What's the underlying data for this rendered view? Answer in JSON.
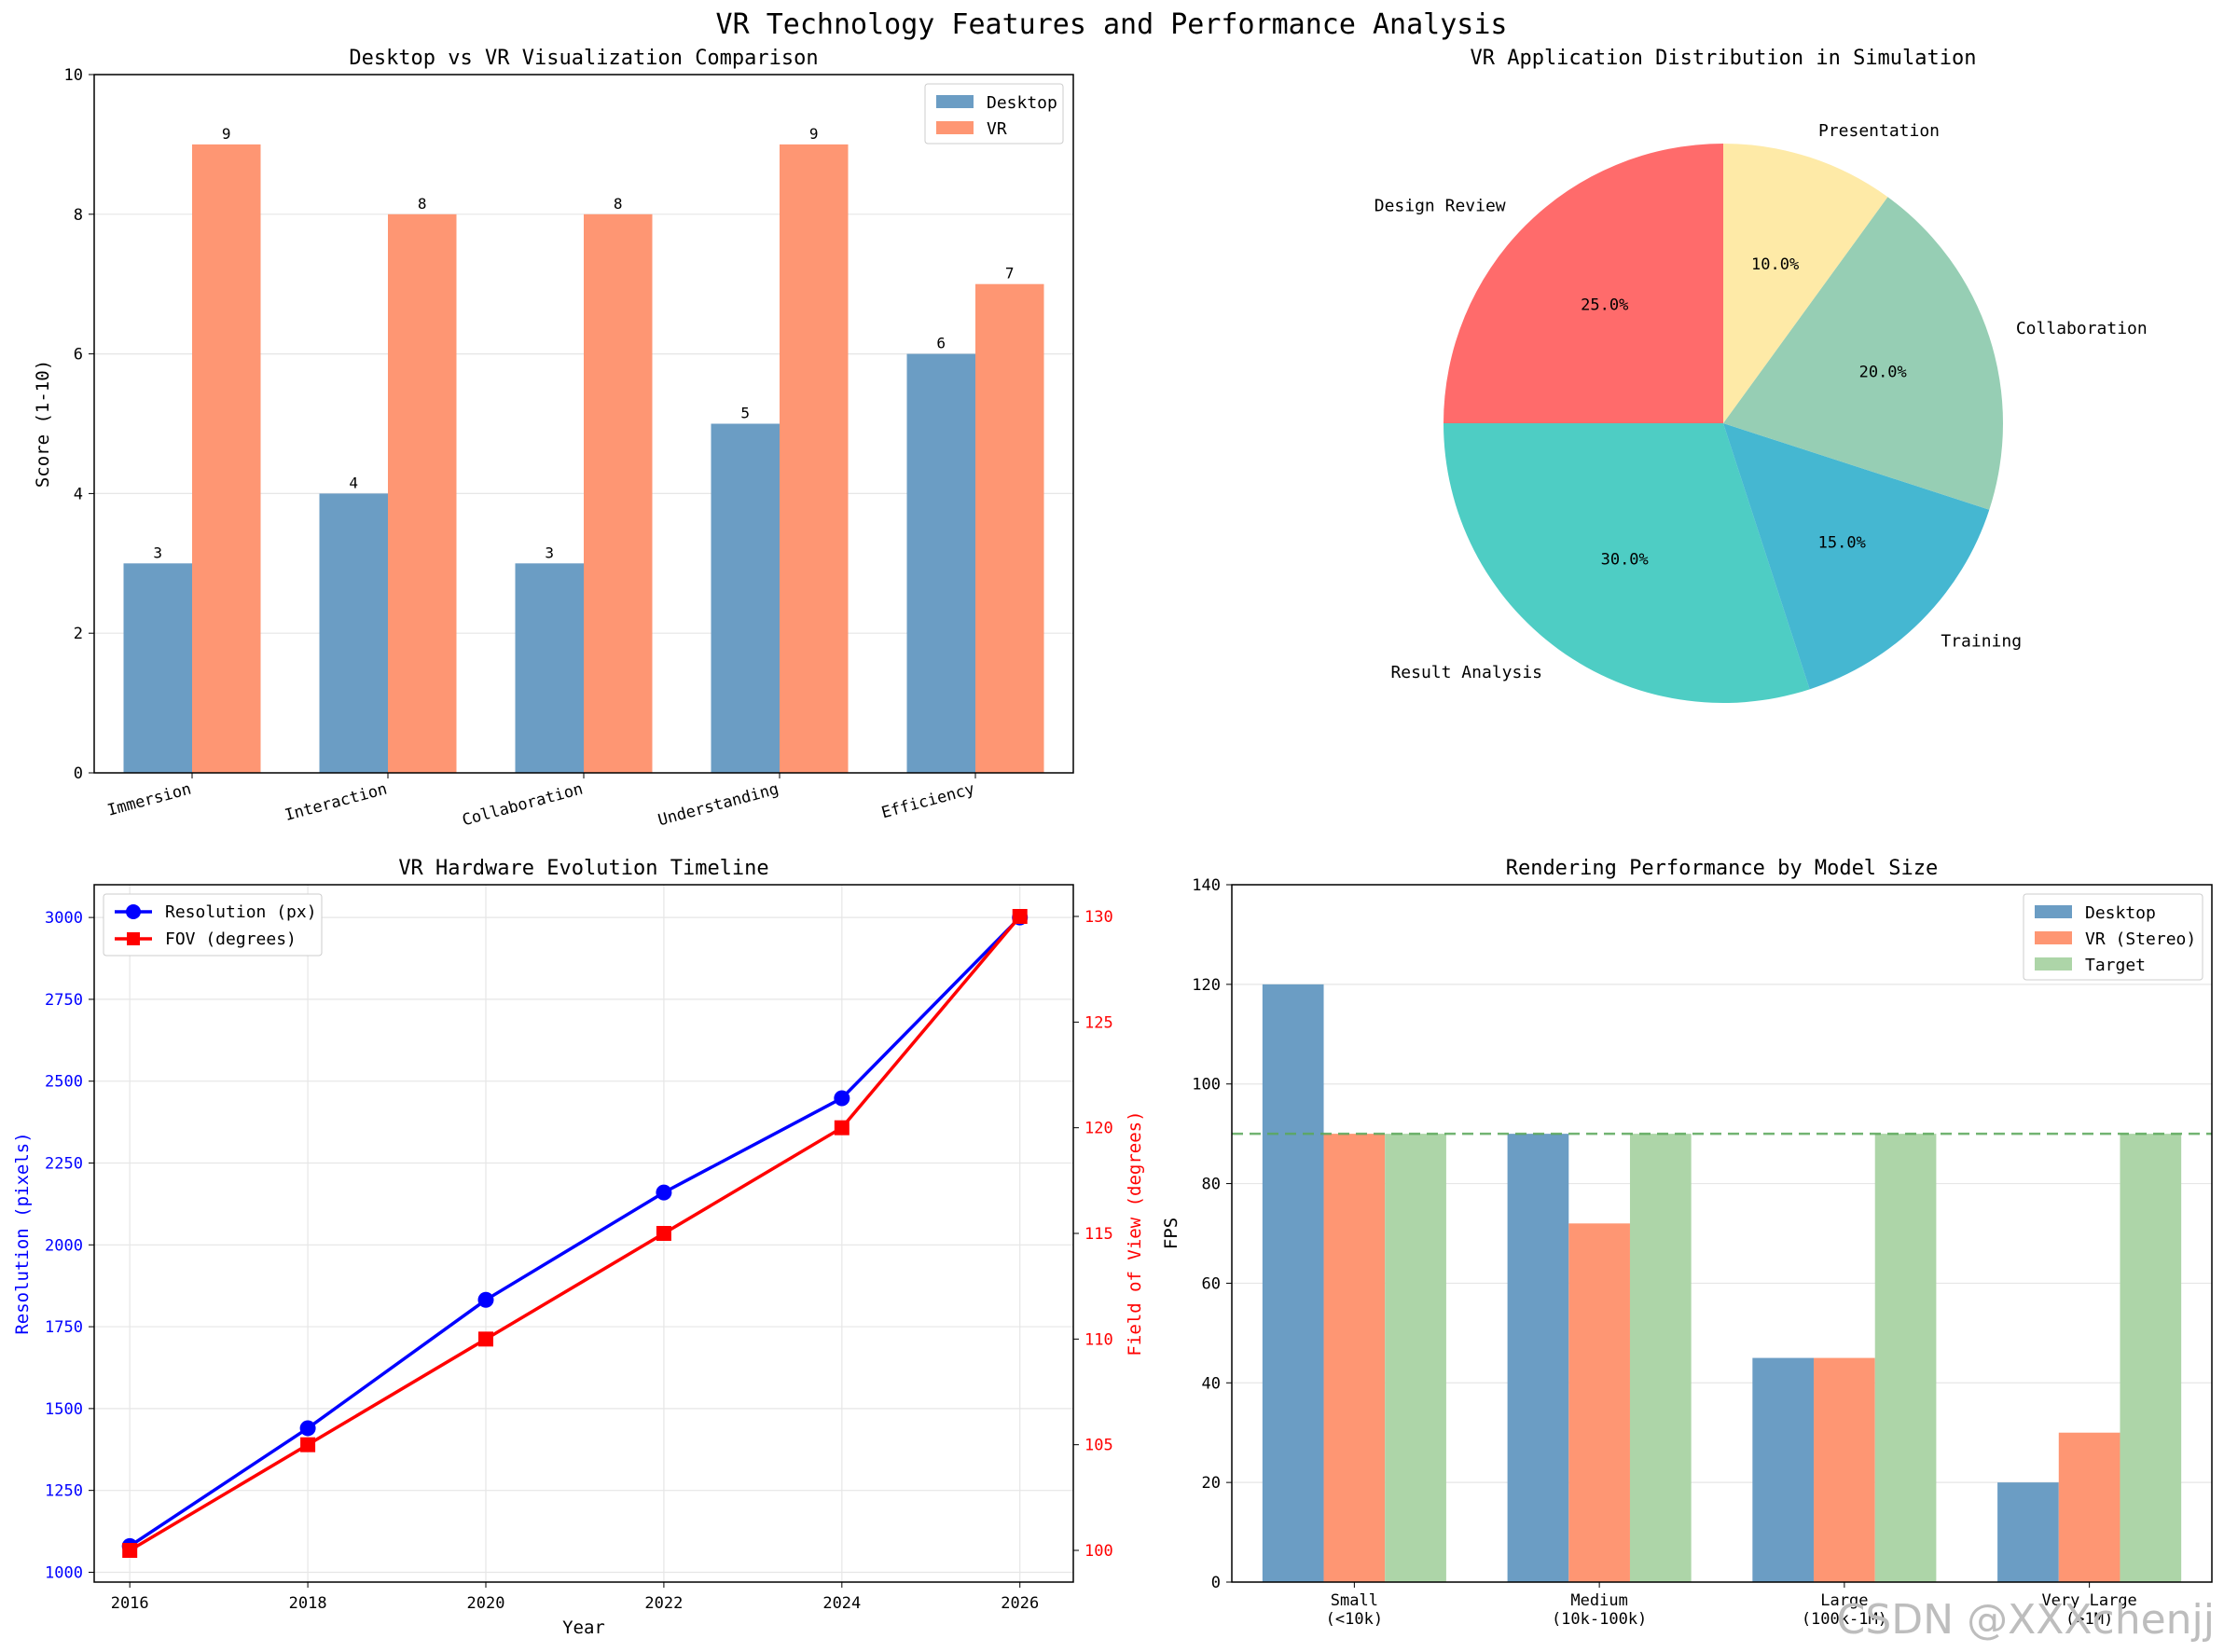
{
  "suptitle": "VR Technology Features and Performance Analysis",
  "watermark": "CSDN @XXXchenjj",
  "colors": {
    "desktop": "#6b9dc4",
    "vr": "#fe9673",
    "target": "#add5a8",
    "resolution": "#0000ff",
    "fov": "#ff0000",
    "target_line": "#5aa85a"
  },
  "chart_data": [
    {
      "id": "comparison",
      "type": "bar",
      "title": "Desktop vs VR Visualization Comparison",
      "xlabel": "",
      "ylabel": "Score (1-10)",
      "categories": [
        "Immersion",
        "Interaction",
        "Collaboration",
        "Understanding",
        "Efficiency"
      ],
      "series": [
        {
          "name": "Desktop",
          "values": [
            3,
            4,
            3,
            5,
            6
          ]
        },
        {
          "name": "VR",
          "values": [
            9,
            8,
            8,
            9,
            7
          ]
        }
      ],
      "ylim": [
        0,
        10
      ],
      "yticks": [
        0,
        2,
        4,
        6,
        8,
        10
      ],
      "grid": true,
      "legend": "top-right"
    },
    {
      "id": "distribution",
      "type": "pie",
      "title": "VR Application Distribution in Simulation",
      "labels": [
        "Design Review",
        "Result Analysis",
        "Training",
        "Collaboration",
        "Presentation"
      ],
      "values": [
        25,
        30,
        15,
        20,
        10
      ],
      "percent_labels": [
        "25.0%",
        "30.0%",
        "15.0%",
        "20.0%",
        "10.0%"
      ],
      "colors": [
        "#ff6b6b",
        "#4ecdc4",
        "#45b7d1",
        "#96ceb4",
        "#feeaa7"
      ],
      "start_angle": 90
    },
    {
      "id": "timeline",
      "type": "line",
      "title": "VR Hardware Evolution Timeline",
      "xlabel": "Year",
      "x": [
        2016,
        2018,
        2020,
        2022,
        2024,
        2026
      ],
      "series": [
        {
          "name": "Resolution (px)",
          "axis": "left",
          "values": [
            1080,
            1440,
            1832,
            2160,
            2448,
            3000
          ]
        },
        {
          "name": "FOV (degrees)",
          "axis": "right",
          "values": [
            100,
            105,
            110,
            115,
            120,
            130
          ]
        }
      ],
      "ylabel_left": "Resolution (pixels)",
      "ylabel_right": "Field of View (degrees)",
      "ylim_left": [
        970,
        3100
      ],
      "ylim_right": [
        98.5,
        131.5
      ],
      "yticks_left": [
        1000,
        1250,
        1500,
        1750,
        2000,
        2250,
        2500,
        2750,
        3000
      ],
      "yticks_right": [
        100,
        105,
        110,
        115,
        120,
        125,
        130
      ],
      "grid": true,
      "legend": "top-left"
    },
    {
      "id": "performance",
      "type": "bar",
      "title": "Rendering Performance by Model Size",
      "ylabel": "FPS",
      "categories": [
        "Small\n(<10k)",
        "Medium\n(10k-100k)",
        "Large\n(100k-1M)",
        "Very Large\n(>1M)"
      ],
      "series": [
        {
          "name": "Desktop",
          "values": [
            120,
            90,
            45,
            20
          ]
        },
        {
          "name": "VR (Stereo)",
          "values": [
            90,
            72,
            45,
            30
          ]
        },
        {
          "name": "Target",
          "values": [
            90,
            90,
            90,
            90
          ]
        }
      ],
      "target_line": 90,
      "ylim": [
        0,
        140
      ],
      "yticks": [
        0,
        20,
        40,
        60,
        80,
        100,
        120,
        140
      ],
      "grid": true,
      "legend": "top-right"
    }
  ]
}
